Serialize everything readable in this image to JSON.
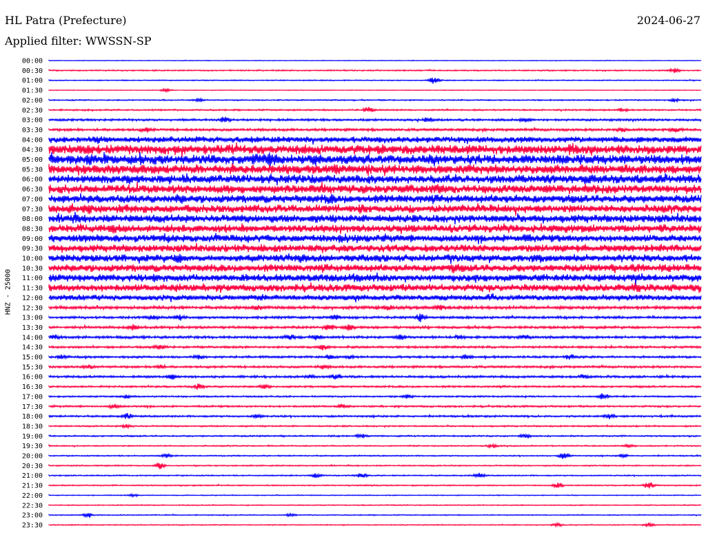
{
  "header": {
    "station": "HL Patra (Prefecture)",
    "date": "2024-06-27",
    "filter": "Applied filter: WWSSN-SP"
  },
  "chart_data": {
    "type": "line",
    "ylabel": "HNZ - 25000",
    "colors": [
      "#0000ff",
      "#ff0040"
    ],
    "tick_labels": [
      "00:00",
      "00:30",
      "01:00",
      "01:30",
      "02:00",
      "02:30",
      "03:00",
      "03:30",
      "04:00",
      "04:30",
      "05:00",
      "05:30",
      "06:00",
      "06:30",
      "07:00",
      "07:30",
      "08:00",
      "08:30",
      "09:00",
      "09:30",
      "10:00",
      "10:30",
      "11:00",
      "11:30",
      "12:00",
      "12:30",
      "13:00",
      "13:30",
      "14:00",
      "14:30",
      "15:00",
      "15:30",
      "16:00",
      "16:30",
      "17:00",
      "17:30",
      "18:00",
      "18:30",
      "19:00",
      "19:30",
      "20:00",
      "20:30",
      "21:00",
      "21:30",
      "22:00",
      "22:30",
      "23:00",
      "23:30"
    ],
    "noise_level": [
      0.5,
      1,
      0.8,
      0.5,
      1,
      1.2,
      1.8,
      2,
      5,
      7.5,
      8,
      7.5,
      7,
      7,
      6.5,
      6.5,
      6.5,
      6.5,
      6,
      6,
      6,
      6,
      6,
      6,
      4.5,
      2.5,
      2,
      2,
      2,
      1.8,
      1.8,
      1.8,
      1.8,
      1.5,
      1.3,
      1.5,
      1.5,
      1.2,
      1.2,
      1,
      1,
      1,
      1,
      1,
      0.7,
      0.8,
      0.8,
      0.8
    ],
    "bursts": [
      [],
      [
        [
          0.96,
          4
        ]
      ],
      [
        [
          0.59,
          6
        ]
      ],
      [
        [
          0.18,
          3
        ]
      ],
      [
        [
          0.23,
          2.5
        ],
        [
          0.96,
          2.5
        ]
      ],
      [
        [
          0.49,
          5
        ],
        [
          0.88,
          2.5
        ]
      ],
      [
        [
          0.27,
          4
        ],
        [
          0.58,
          3
        ],
        [
          0.73,
          3
        ]
      ],
      [
        [
          0.15,
          3
        ],
        [
          0.88,
          3
        ],
        [
          0.96,
          3
        ]
      ],
      [
        [
          0.08,
          3
        ]
      ],
      [
        [
          0.8,
          5
        ],
        [
          0.06,
          2.5
        ]
      ],
      [
        [
          0.34,
          8
        ],
        [
          0.41,
          5
        ],
        [
          0.06,
          2
        ]
      ],
      [
        [
          0.44,
          3
        ]
      ],
      [
        [
          0.83,
          3
        ],
        [
          0.12,
          2
        ]
      ],
      [
        [
          0.28,
          3
        ],
        [
          0.6,
          2.5
        ]
      ],
      [
        [
          0.43,
          3
        ],
        [
          0.2,
          2.5
        ]
      ],
      [
        [
          0.06,
          4
        ],
        [
          0.48,
          2.5
        ]
      ],
      [
        [
          0.04,
          2.5
        ]
      ],
      [
        [
          0.1,
          2.5
        ],
        [
          0.7,
          2.5
        ]
      ],
      [
        [
          0.45,
          3
        ],
        [
          0.73,
          3
        ]
      ],
      [
        [
          0.33,
          3
        ]
      ],
      [
        [
          0.2,
          3
        ],
        [
          0.39,
          3
        ],
        [
          0.75,
          3
        ]
      ],
      [
        [
          0.62,
          3
        ],
        [
          0.9,
          3
        ]
      ],
      [
        [
          0.16,
          2.5
        ],
        [
          0.47,
          3
        ],
        [
          0.9,
          3
        ]
      ],
      [
        [
          0.2,
          2.5
        ],
        [
          0.9,
          3
        ]
      ],
      [
        [
          0.33,
          3
        ],
        [
          0.68,
          4
        ]
      ],
      [
        [
          0.32,
          3
        ],
        [
          0.52,
          3
        ],
        [
          0.6,
          3
        ]
      ],
      [
        [
          0.16,
          3
        ],
        [
          0.2,
          4
        ],
        [
          0.44,
          4
        ],
        [
          0.57,
          6
        ]
      ],
      [
        [
          0.13,
          4
        ],
        [
          0.43,
          5
        ],
        [
          0.46,
          4
        ]
      ],
      [
        [
          0.01,
          3
        ],
        [
          0.37,
          5
        ],
        [
          0.41,
          3
        ],
        [
          0.54,
          3
        ],
        [
          0.63,
          3
        ],
        [
          0.73,
          3
        ]
      ],
      [
        [
          0.17,
          4
        ],
        [
          0.42,
          4
        ]
      ],
      [
        [
          0.02,
          3
        ],
        [
          0.23,
          3
        ],
        [
          0.43,
          3
        ],
        [
          0.46,
          3
        ],
        [
          0.64,
          3
        ],
        [
          0.8,
          3
        ]
      ],
      [
        [
          0.06,
          3
        ],
        [
          0.17,
          3
        ],
        [
          0.42,
          3
        ]
      ],
      [
        [
          0.19,
          4
        ],
        [
          0.4,
          3
        ],
        [
          0.44,
          4
        ],
        [
          0.82,
          4
        ]
      ],
      [
        [
          0.23,
          4
        ],
        [
          0.33,
          3
        ]
      ],
      [
        [
          0.12,
          3
        ],
        [
          0.55,
          3
        ],
        [
          0.85,
          5
        ]
      ],
      [
        [
          0.1,
          3
        ],
        [
          0.45,
          3
        ]
      ],
      [
        [
          0.12,
          4
        ],
        [
          0.32,
          3
        ],
        [
          0.86,
          4
        ]
      ],
      [
        [
          0.12,
          3
        ]
      ],
      [
        [
          0.48,
          3
        ],
        [
          0.73,
          4
        ]
      ],
      [
        [
          0.68,
          3
        ],
        [
          0.89,
          3
        ]
      ],
      [
        [
          0.18,
          3
        ],
        [
          0.79,
          5
        ],
        [
          0.88,
          3
        ]
      ],
      [
        [
          0.17,
          5
        ]
      ],
      [
        [
          0.41,
          4
        ],
        [
          0.48,
          5
        ],
        [
          0.66,
          4
        ]
      ],
      [
        [
          0.78,
          4
        ],
        [
          0.92,
          5
        ]
      ],
      [
        [
          0.13,
          2
        ]
      ],
      [],
      [
        [
          0.06,
          4
        ],
        [
          0.37,
          2
        ]
      ],
      [
        [
          0.78,
          3
        ],
        [
          0.92,
          3
        ]
      ]
    ]
  }
}
